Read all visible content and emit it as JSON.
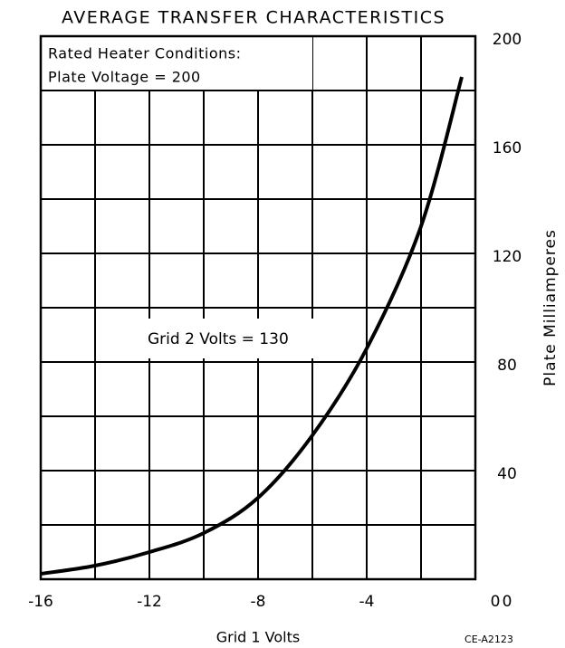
{
  "chart_data": {
    "type": "line",
    "title": "AVERAGE TRANSFER CHARACTERISTICS",
    "conditions": [
      "Rated Heater Conditions:",
      "Plate Voltage = 200"
    ],
    "annotation": "Grid 2 Volts = 130",
    "xlabel": "Grid 1 Volts",
    "ylabel": "Plate Milliamperes",
    "code": "CE-A2123",
    "x": [
      -16,
      -14,
      -12,
      -10,
      -8,
      -6,
      -4,
      -2,
      -0.5
    ],
    "series": [
      {
        "name": "Grid 2 Volts = 130",
        "color": "#000000",
        "values": [
          2,
          5,
          10,
          17,
          30,
          53,
          85,
          130,
          185
        ]
      }
    ],
    "xlim": [
      -16,
      0
    ],
    "xticks": [
      -16,
      -12,
      -8,
      -4,
      0
    ],
    "ylim": [
      0,
      200
    ],
    "yticks": [
      0,
      40,
      80,
      120,
      160,
      200
    ],
    "xgrid": [
      -16,
      -14,
      -12,
      -10,
      -8,
      -6,
      -4,
      -2,
      0
    ],
    "ygrid": [
      0,
      20,
      40,
      60,
      80,
      100,
      120,
      140,
      160,
      180,
      200
    ],
    "grid": true
  }
}
